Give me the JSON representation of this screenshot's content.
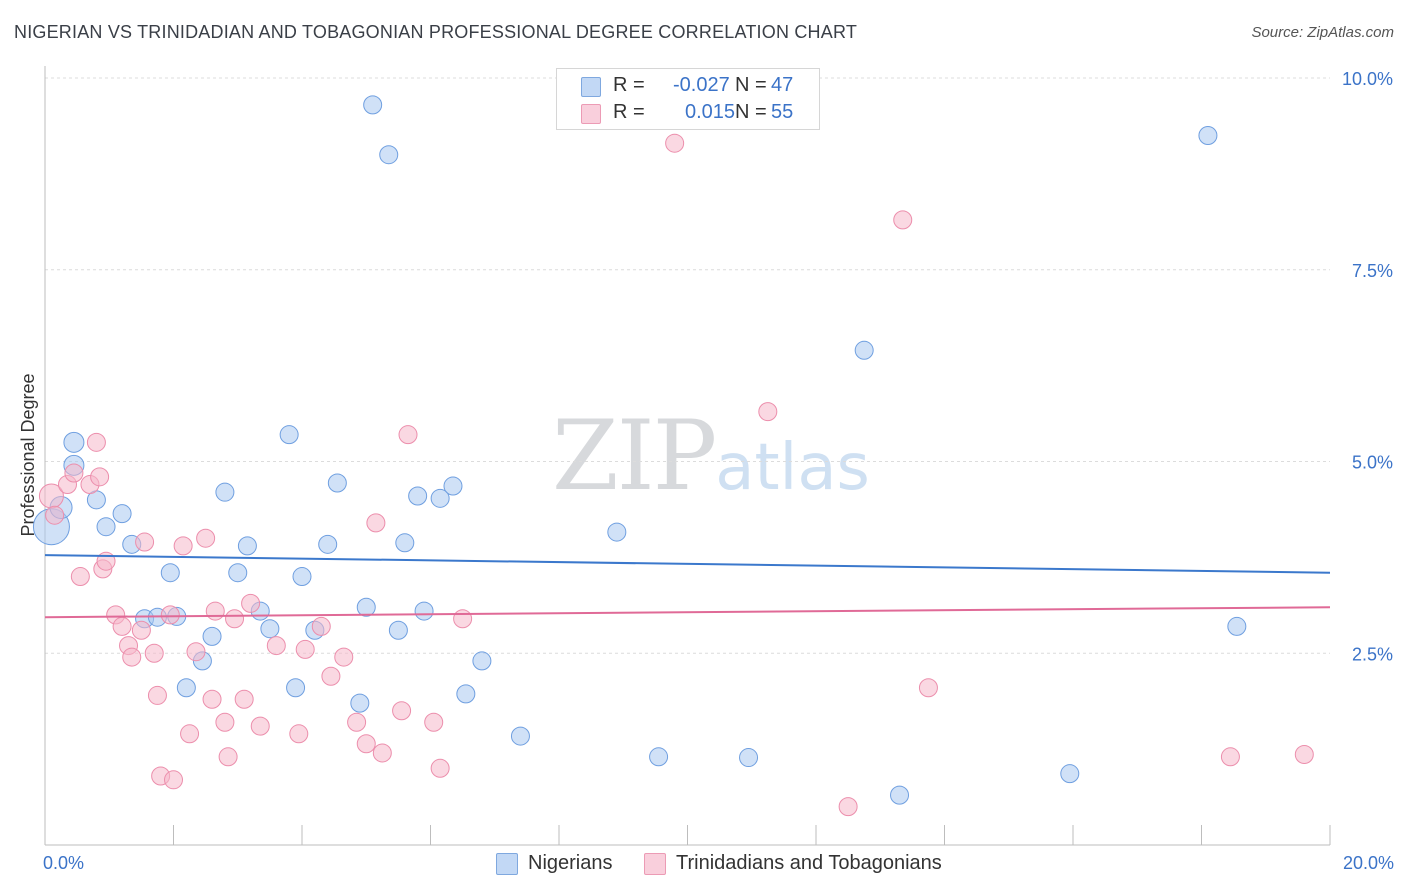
{
  "header": {
    "title": "NIGERIAN VS TRINIDADIAN AND TOBAGONIAN PROFESSIONAL DEGREE CORRELATION CHART",
    "source": "Source: ZipAtlas.com"
  },
  "watermark": {
    "zip": "ZIP",
    "atlas": "atlas"
  },
  "legend": {
    "rows": [
      {
        "r_label": "R =",
        "r_value": "-0.027",
        "n_label": "N =",
        "n_value": "47",
        "color": "#aac8f0"
      },
      {
        "r_label": "R =",
        "r_value": "0.015",
        "n_label": "N =",
        "n_value": "55",
        "color": "#f5b8cb"
      }
    ]
  },
  "bottom_legend": {
    "items": [
      {
        "label": "Nigerians",
        "color": "#aac8f0"
      },
      {
        "label": "Trinidadians and Tobagonians",
        "color": "#f5b8cb"
      }
    ]
  },
  "chart_data": {
    "type": "scatter",
    "title": "NIGERIAN VS TRINIDADIAN AND TOBAGONIAN PROFESSIONAL DEGREE CORRELATION CHART",
    "xlabel": "",
    "ylabel": "Professional Degree",
    "xlim": [
      0,
      20
    ],
    "ylim": [
      0,
      10
    ],
    "x_tick_labels": [
      "0.0%",
      "20.0%"
    ],
    "y_ticks": [
      {
        "value": 2.5,
        "label": "2.5%"
      },
      {
        "value": 5.0,
        "label": "5.0%"
      },
      {
        "value": 7.5,
        "label": "7.5%"
      },
      {
        "value": 10.0,
        "label": "10.0%"
      }
    ],
    "grid": true,
    "legend_position": "top-center",
    "series": [
      {
        "name": "Nigerians",
        "color": "#6f9fe0",
        "fill": "#aac8f0",
        "line_color": "#3b78cc",
        "trend": [
          [
            0,
            3.78
          ],
          [
            20,
            3.55
          ]
        ],
        "points": [
          [
            0.1,
            4.15,
            18
          ],
          [
            0.25,
            4.4,
            11
          ],
          [
            0.45,
            5.25,
            10
          ],
          [
            0.45,
            4.95,
            10
          ],
          [
            0.8,
            4.5,
            9
          ],
          [
            0.95,
            4.15,
            9
          ],
          [
            1.2,
            4.32,
            9
          ],
          [
            1.35,
            3.92,
            9
          ],
          [
            1.55,
            2.95,
            9
          ],
          [
            1.75,
            2.97,
            9
          ],
          [
            1.95,
            3.55,
            9
          ],
          [
            2.05,
            2.98,
            9
          ],
          [
            2.2,
            2.05,
            9
          ],
          [
            2.45,
            2.4,
            9
          ],
          [
            2.6,
            2.72,
            9
          ],
          [
            2.8,
            4.6,
            9
          ],
          [
            3.0,
            3.55,
            9
          ],
          [
            3.15,
            3.9,
            9
          ],
          [
            3.35,
            3.05,
            9
          ],
          [
            3.5,
            2.82,
            9
          ],
          [
            3.8,
            5.35,
            9
          ],
          [
            3.9,
            2.05,
            9
          ],
          [
            4.0,
            3.5,
            9
          ],
          [
            4.2,
            2.8,
            9
          ],
          [
            4.4,
            3.92,
            9
          ],
          [
            4.55,
            4.72,
            9
          ],
          [
            4.9,
            1.85,
            9
          ],
          [
            5.0,
            3.1,
            9
          ],
          [
            5.1,
            9.65,
            9
          ],
          [
            5.35,
            9.0,
            9
          ],
          [
            5.5,
            2.8,
            9
          ],
          [
            5.6,
            3.94,
            9
          ],
          [
            5.8,
            4.55,
            9
          ],
          [
            5.9,
            3.05,
            9
          ],
          [
            6.15,
            4.52,
            9
          ],
          [
            6.35,
            4.68,
            9
          ],
          [
            6.55,
            1.97,
            9
          ],
          [
            6.8,
            2.4,
            9
          ],
          [
            7.4,
            1.42,
            9
          ],
          [
            8.9,
            4.08,
            9
          ],
          [
            9.55,
            1.15,
            9
          ],
          [
            10.95,
            1.14,
            9
          ],
          [
            12.75,
            6.45,
            9
          ],
          [
            13.3,
            0.65,
            9
          ],
          [
            15.95,
            0.93,
            9
          ],
          [
            18.1,
            9.25,
            9
          ],
          [
            18.55,
            2.85,
            9
          ]
        ]
      },
      {
        "name": "Trinidadians and Tobagonians",
        "color": "#ec8eac",
        "fill": "#f5b8cb",
        "line_color": "#e06a97",
        "trend": [
          [
            0,
            2.97
          ],
          [
            20,
            3.1
          ]
        ],
        "points": [
          [
            0.1,
            4.55,
            12
          ],
          [
            0.15,
            4.3,
            9
          ],
          [
            0.35,
            4.7,
            9
          ],
          [
            0.45,
            4.85,
            9
          ],
          [
            0.55,
            3.5,
            9
          ],
          [
            0.7,
            4.7,
            9
          ],
          [
            0.8,
            5.25,
            9
          ],
          [
            0.85,
            4.8,
            9
          ],
          [
            0.9,
            3.6,
            9
          ],
          [
            0.95,
            3.7,
            9
          ],
          [
            1.1,
            3.0,
            9
          ],
          [
            1.2,
            2.85,
            9
          ],
          [
            1.3,
            2.6,
            9
          ],
          [
            1.35,
            2.45,
            9
          ],
          [
            1.5,
            2.8,
            9
          ],
          [
            1.55,
            3.95,
            9
          ],
          [
            1.7,
            2.5,
            9
          ],
          [
            1.75,
            1.95,
            9
          ],
          [
            1.8,
            0.9,
            9
          ],
          [
            1.95,
            3.0,
            9
          ],
          [
            2.0,
            0.85,
            9
          ],
          [
            2.15,
            3.9,
            9
          ],
          [
            2.25,
            1.45,
            9
          ],
          [
            2.35,
            2.52,
            9
          ],
          [
            2.5,
            4.0,
            9
          ],
          [
            2.6,
            1.9,
            9
          ],
          [
            2.65,
            3.05,
            9
          ],
          [
            2.8,
            1.6,
            9
          ],
          [
            2.85,
            1.15,
            9
          ],
          [
            2.95,
            2.95,
            9
          ],
          [
            3.1,
            1.9,
            9
          ],
          [
            3.2,
            3.15,
            9
          ],
          [
            3.35,
            1.55,
            9
          ],
          [
            3.6,
            2.6,
            9
          ],
          [
            3.95,
            1.45,
            9
          ],
          [
            4.05,
            2.55,
            9
          ],
          [
            4.3,
            2.85,
            9
          ],
          [
            4.45,
            2.2,
            9
          ],
          [
            4.65,
            2.45,
            9
          ],
          [
            4.85,
            1.6,
            9
          ],
          [
            5.0,
            1.32,
            9
          ],
          [
            5.15,
            4.2,
            9
          ],
          [
            5.25,
            1.2,
            9
          ],
          [
            5.55,
            1.75,
            9
          ],
          [
            5.65,
            5.35,
            9
          ],
          [
            6.05,
            1.6,
            9
          ],
          [
            6.15,
            1.0,
            9
          ],
          [
            6.5,
            2.95,
            9
          ],
          [
            9.8,
            9.15,
            9
          ],
          [
            11.25,
            5.65,
            9
          ],
          [
            12.5,
            0.5,
            9
          ],
          [
            13.35,
            8.15,
            9
          ],
          [
            13.75,
            2.05,
            9
          ],
          [
            18.45,
            1.15,
            9
          ],
          [
            19.6,
            1.18,
            9
          ]
        ]
      }
    ]
  }
}
